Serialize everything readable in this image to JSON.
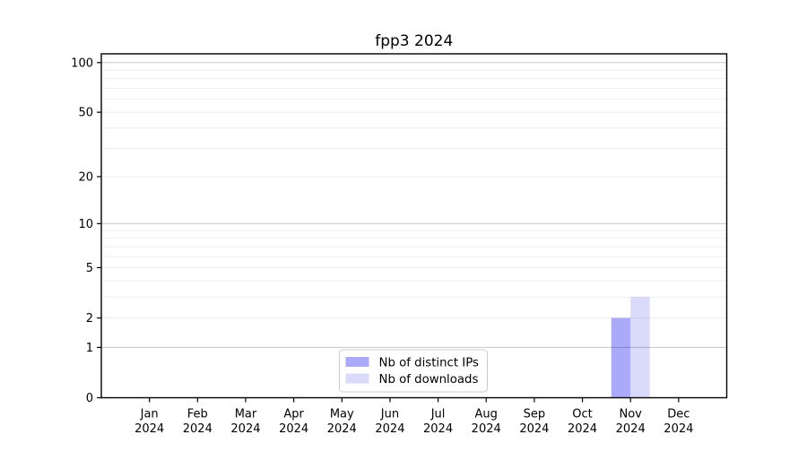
{
  "figure": {
    "background": "#ffffff",
    "title": "fpp3 2024"
  },
  "chart_data": {
    "type": "bar",
    "title": "fpp3 2024",
    "categories": [
      "Jan 2024",
      "Feb 2024",
      "Mar 2024",
      "Apr 2024",
      "May 2024",
      "Jun 2024",
      "Jul 2024",
      "Aug 2024",
      "Sep 2024",
      "Oct 2024",
      "Nov 2024",
      "Dec 2024"
    ],
    "series": [
      {
        "name": "Nb of distinct IPs",
        "color": "#aaaaf8",
        "values": [
          0,
          0,
          0,
          0,
          0,
          0,
          0,
          0,
          0,
          0,
          2,
          0
        ]
      },
      {
        "name": "Nb of downloads",
        "color": "#dadafa",
        "values": [
          0,
          0,
          0,
          0,
          0,
          0,
          0,
          0,
          0,
          0,
          3,
          0
        ]
      }
    ],
    "xlabel": "",
    "ylabel": "",
    "y_scale": "log1p",
    "ylim": [
      0,
      113
    ],
    "yticks": [
      0,
      1,
      2,
      5,
      10,
      20,
      50,
      100
    ],
    "major_gridlines": [
      1,
      10,
      100
    ],
    "minor_gridlines": [
      2,
      3,
      4,
      5,
      6,
      7,
      8,
      9,
      20,
      30,
      40,
      50,
      60,
      70,
      80,
      90,
      110
    ],
    "grid": true,
    "legend": {
      "position": "lower center",
      "labels": [
        "Nb of distinct IPs",
        "Nb of downloads"
      ]
    }
  },
  "style": {
    "major_grid_color": "rgba(0,0,0,0.22)",
    "minor_grid_color": "rgba(0,0,0,0.07)",
    "spine_color": "#000000",
    "legend_border_color": "#cccccc",
    "legend_bg_color": "rgba(255,255,255,0.85)"
  }
}
